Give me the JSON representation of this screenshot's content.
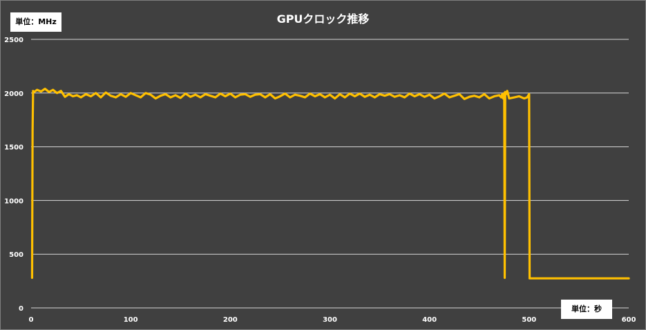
{
  "chart_data": {
    "type": "line",
    "title": "GPUクロック推移",
    "y_unit_label": "単位：MHz",
    "x_unit_label": "単位：秒",
    "xlim": [
      0,
      600
    ],
    "ylim": [
      0,
      2500
    ],
    "x_ticks": [
      0,
      100,
      200,
      300,
      400,
      500,
      600
    ],
    "y_ticks": [
      0,
      500,
      1000,
      1500,
      2000,
      2500
    ],
    "grid": "horizontal",
    "colors": {
      "background": "#404040",
      "line": "#FFC000",
      "grid": "#d9d9d9",
      "text": "#ffffff"
    },
    "series": [
      {
        "x": [
          1,
          1.5,
          2,
          3,
          6,
          10,
          14,
          18,
          22,
          26,
          30,
          34,
          38,
          42,
          46,
          50,
          55,
          60,
          65,
          70,
          75,
          80,
          85,
          90,
          95,
          100,
          105,
          110,
          115,
          120,
          125,
          130,
          135,
          140,
          145,
          150,
          155,
          160,
          165,
          170,
          175,
          180,
          185,
          190,
          195,
          200,
          205,
          210,
          215,
          220,
          225,
          230,
          235,
          240,
          245,
          250,
          255,
          260,
          265,
          270,
          275,
          280,
          285,
          290,
          295,
          300,
          305,
          310,
          315,
          320,
          325,
          330,
          335,
          340,
          345,
          350,
          355,
          360,
          365,
          370,
          375,
          380,
          385,
          390,
          395,
          400,
          405,
          410,
          415,
          420,
          425,
          430,
          435,
          440,
          445,
          450,
          455,
          460,
          465,
          470,
          472,
          473,
          474,
          475,
          475.5,
          476,
          477,
          478,
          480,
          485,
          490,
          495,
          498,
          500,
          500.5,
          505,
          520,
          540,
          560,
          580,
          600
        ],
        "y": [
          280,
          1650,
          2020,
          2010,
          2030,
          2015,
          2040,
          2010,
          2030,
          2000,
          2020,
          1965,
          1990,
          1970,
          1980,
          1960,
          1990,
          1970,
          2000,
          1960,
          2005,
          1975,
          1960,
          1990,
          1965,
          2000,
          1980,
          1960,
          2000,
          1985,
          1950,
          1975,
          1990,
          1960,
          1980,
          1955,
          1995,
          1965,
          1985,
          1960,
          1990,
          1975,
          1960,
          1995,
          1970,
          1995,
          1960,
          1985,
          1990,
          1965,
          1985,
          1990,
          1960,
          1990,
          1950,
          1970,
          1995,
          1960,
          1985,
          1975,
          1960,
          1995,
          1970,
          1990,
          1960,
          1985,
          1950,
          1990,
          1960,
          1995,
          1970,
          1995,
          1965,
          1985,
          1960,
          1990,
          1975,
          1990,
          1965,
          1980,
          1960,
          1995,
          1970,
          1990,
          1965,
          1985,
          1950,
          1970,
          1995,
          1960,
          1975,
          1990,
          1945,
          1965,
          1975,
          1960,
          1990,
          1950,
          1970,
          1980,
          1960,
          1990,
          1950,
          2000,
          280,
          2010,
          1990,
          2020,
          1950,
          1960,
          1970,
          1950,
          1960,
          1990,
          275,
          275,
          275,
          275,
          275,
          275,
          275
        ]
      }
    ]
  }
}
